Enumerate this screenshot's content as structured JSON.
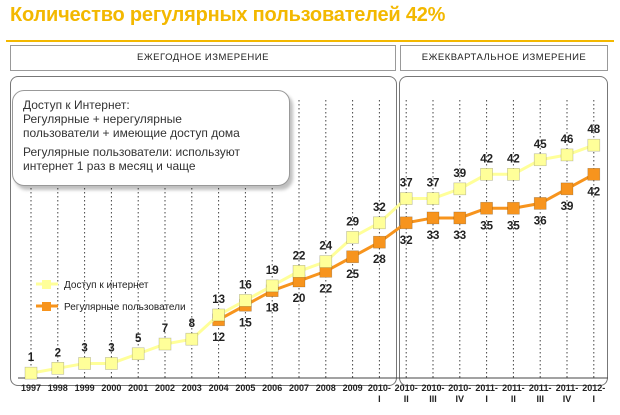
{
  "title": "Количество регулярных пользователей 42%",
  "periods": {
    "annual": "ЕЖЕГОДНОЕ ИЗМЕРЕНИЕ",
    "quarterly": "ЕЖЕКВАРТАЛЬНОЕ ИЗМЕРЕНИЕ"
  },
  "note": {
    "line1": "Доступ к Интернет:\nРегулярные + нерегулярные\nпользователи + имеющие доступ дома",
    "line2": "Регулярные пользователи: используют\nинтернет 1 раз в месяц и чаще"
  },
  "colors": {
    "internet": "#ffff99",
    "regular": "#f7941d",
    "title": "#f3b800"
  },
  "chart_data": {
    "type": "line",
    "categories": [
      [
        "1997"
      ],
      [
        "1998"
      ],
      [
        "1999"
      ],
      [
        "2000"
      ],
      [
        "2001"
      ],
      [
        "2002"
      ],
      [
        "2003"
      ],
      [
        "2004"
      ],
      [
        "2005"
      ],
      [
        "2006"
      ],
      [
        "2007"
      ],
      [
        "2008"
      ],
      [
        "2009"
      ],
      [
        "2010-",
        "I"
      ],
      [
        "2010-",
        "II"
      ],
      [
        "2010-",
        "III"
      ],
      [
        "2010-",
        "IV"
      ],
      [
        "2011-",
        "I"
      ],
      [
        "2011-",
        "II"
      ],
      [
        "2011-",
        "III"
      ],
      [
        "2011-",
        "IV"
      ],
      [
        "2012-",
        "I"
      ]
    ],
    "series": [
      {
        "name": "Доступ к интернет",
        "values": [
          1,
          2,
          3,
          3,
          5,
          7,
          8,
          13,
          16,
          19,
          22,
          24,
          29,
          32,
          37,
          37,
          39,
          42,
          42,
          45,
          46,
          48
        ]
      },
      {
        "name": "Регулярные пользователи",
        "values": [
          null,
          null,
          null,
          null,
          null,
          null,
          null,
          12,
          15,
          18,
          20,
          22,
          25,
          28,
          32,
          33,
          33,
          35,
          35,
          36,
          39,
          42
        ]
      }
    ],
    "ylim": [
      0,
      50
    ],
    "grid": true,
    "legend": "left-middle"
  }
}
